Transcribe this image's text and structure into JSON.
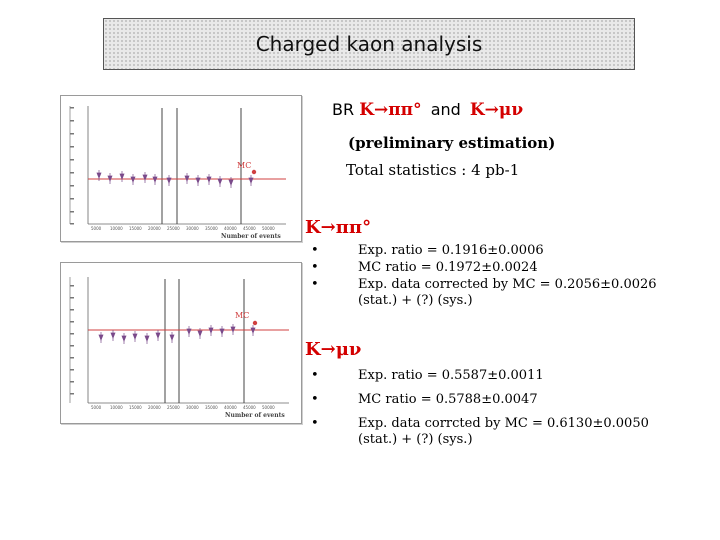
{
  "slide": {
    "title": "Charged kaon analysis",
    "br_heading": {
      "prefix": "BR",
      "decay1": "K→ππ°",
      "conj": "and",
      "decay2": "K→μν"
    },
    "subtitle": "(preliminary estimation)",
    "statistics": "Total statistics : 4 pb-1",
    "sections": [
      {
        "heading": "K→ππ°",
        "bullets": [
          "Exp. ratio = 0.1916±0.0006",
          "MC ratio = 0.1972±0.0024",
          "Exp. data corrected by MC = 0.2056±0.0026",
          "(stat.) + (?) (sys.)"
        ]
      },
      {
        "heading": "K→μν",
        "bullets": [
          "Exp. ratio = 0.5587±0.0011",
          "MC ratio = 0.5788±0.0047",
          "Exp. data corrcted by MC = 0.6130±0.0050",
          "(stat.) + (?) (sys.)"
        ]
      }
    ],
    "bullet_glyph": "•"
  },
  "plots": [
    {
      "mc_label": "MC",
      "x_axis_label": "Number of events",
      "x_tick_labels": [
        "5000",
        "10000",
        "15000",
        "20000",
        "25000",
        "30000",
        "35000",
        "40000",
        "45000",
        "50000"
      ],
      "colors": {
        "mc_line": "#d04040",
        "points": "#7a4a8a",
        "vlines": "#444444"
      }
    },
    {
      "mc_label": "MC",
      "x_axis_label": "Number of events",
      "x_tick_labels": [
        "5000",
        "10000",
        "15000",
        "20000",
        "25000",
        "30000",
        "35000",
        "40000",
        "45000",
        "50000"
      ],
      "colors": {
        "mc_line": "#d04040",
        "points": "#7a4a8a",
        "vlines": "#444444"
      }
    }
  ]
}
